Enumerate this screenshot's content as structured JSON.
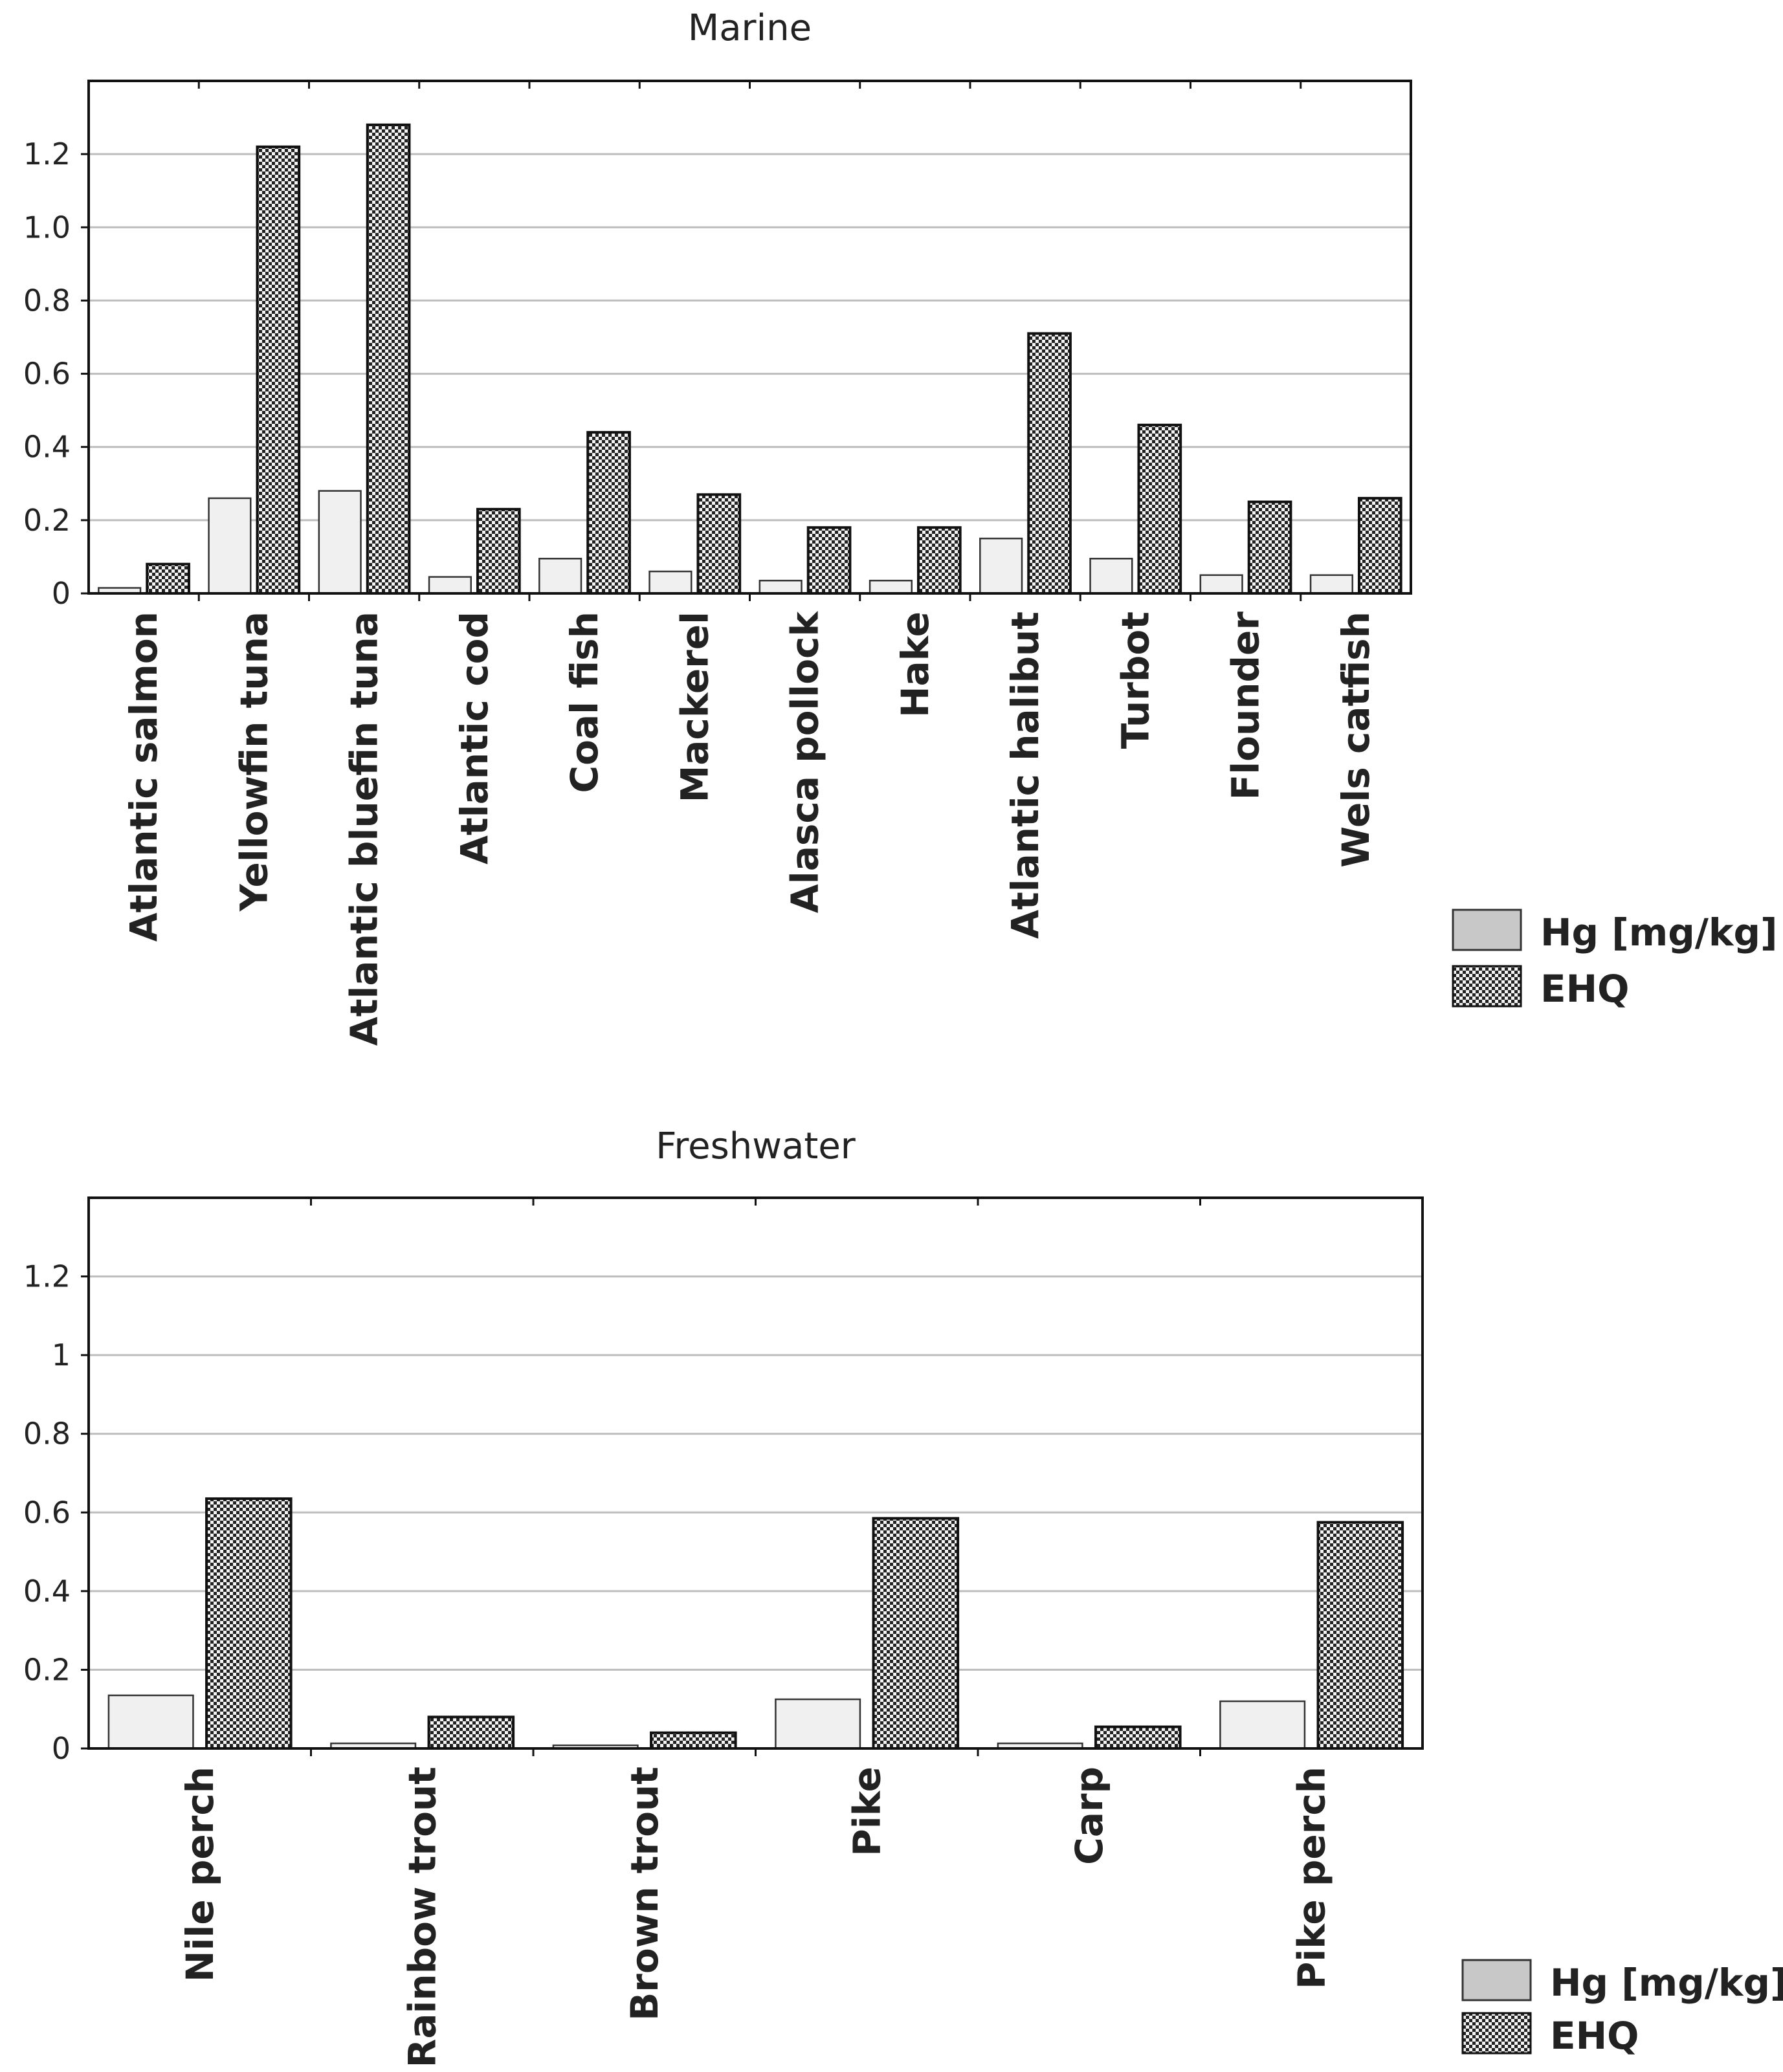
{
  "colors": {
    "hg_fill": "#f0f0f0",
    "ehq_fill": "#f4f4f4",
    "ehq_pattern": "#222222",
    "grid": "#bdbdbd",
    "axis": "#111111"
  },
  "legend": {
    "hg": "Hg [mg/kg]",
    "ehq": "EHQ"
  },
  "chart_data": [
    {
      "type": "bar",
      "title": "Marine",
      "ylim": [
        0,
        1.4
      ],
      "yticks": [
        0,
        0.2,
        0.4,
        0.6,
        0.8,
        1.0,
        1.2
      ],
      "ytick_labels": [
        "0",
        "0.2",
        "0.4",
        "0.6",
        "0.8",
        "1.0",
        "1.2"
      ],
      "grid": true,
      "legend_position": "right-below",
      "categories": [
        "Atlantic salmon",
        "Yellowfin tuna",
        "Atlantic bluefin tuna",
        "Atlantic cod",
        "Coal fish",
        "Mackerel",
        "Alasca pollock",
        "Hake",
        "Atlantic halibut",
        "Turbot",
        "Flounder",
        "Wels catfish"
      ],
      "series": [
        {
          "name": "Hg [mg/kg]",
          "values": [
            0.015,
            0.26,
            0.28,
            0.045,
            0.095,
            0.06,
            0.035,
            0.035,
            0.15,
            0.095,
            0.05,
            0.05
          ]
        },
        {
          "name": "EHQ",
          "values": [
            0.08,
            1.22,
            1.28,
            0.23,
            0.44,
            0.27,
            0.18,
            0.18,
            0.71,
            0.46,
            0.25,
            0.26
          ]
        }
      ]
    },
    {
      "type": "bar",
      "title": "Freshwater",
      "ylim": [
        0,
        1.4
      ],
      "yticks": [
        0,
        0.2,
        0.4,
        0.6,
        0.8,
        1.0,
        1.2
      ],
      "ytick_labels": [
        "0",
        "0.2",
        "0.4",
        "0.6",
        "0.8",
        "1",
        "1.2"
      ],
      "grid": true,
      "legend_position": "right-below",
      "categories": [
        "Nile perch",
        "Rainbow trout",
        "Brown trout",
        "Pike",
        "Carp",
        "Pike perch"
      ],
      "series": [
        {
          "name": "Hg [mg/kg]",
          "values": [
            0.135,
            0.013,
            0.008,
            0.125,
            0.013,
            0.12
          ]
        },
        {
          "name": "EHQ",
          "values": [
            0.635,
            0.08,
            0.04,
            0.585,
            0.055,
            0.575
          ]
        }
      ]
    }
  ]
}
